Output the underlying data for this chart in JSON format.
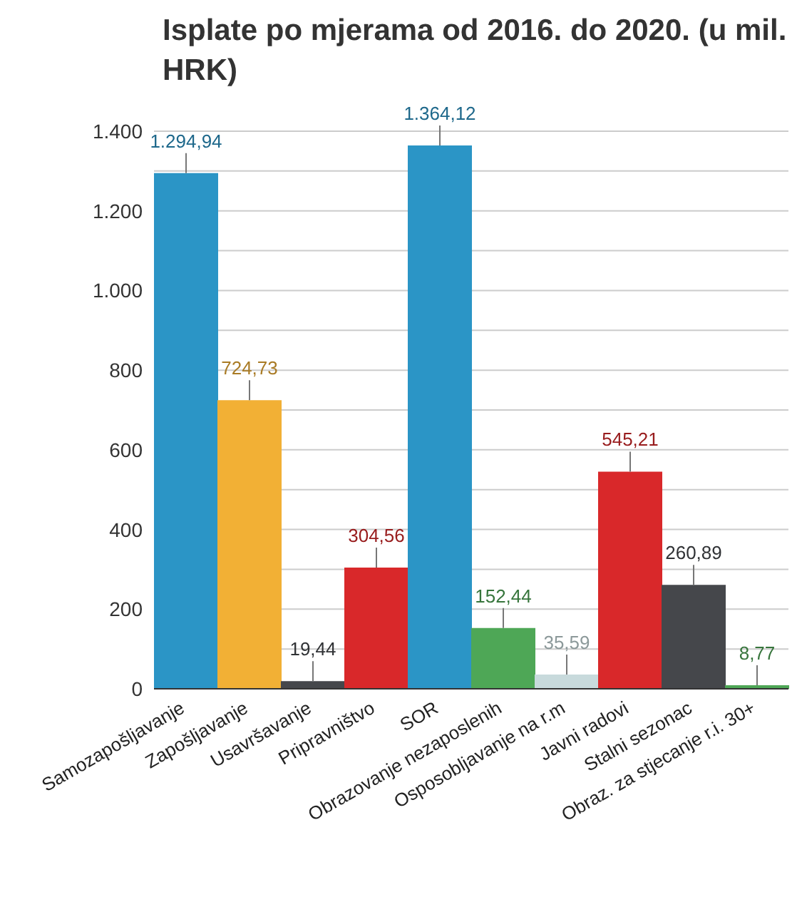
{
  "chart_data": {
    "type": "bar",
    "title": "Isplate po mjerama od 2016. do 2020. (u mil. HRK)",
    "categories": [
      "Samozapošljavanje",
      "Zapošljavanje",
      "Usavršavanje",
      "Pripravništvo",
      "SOR",
      "Obrazovanje nezaposlenih",
      "Osposobljavanje na r.m",
      "Javni radovi",
      "Stalni sezonac",
      "Obraz. za stjecanje r.i. 30+"
    ],
    "values": [
      1294.94,
      724.73,
      19.44,
      304.56,
      1364.12,
      152.44,
      35.59,
      545.21,
      260.89,
      8.77
    ],
    "value_labels": [
      "1.294,94",
      "724,73",
      "19,44",
      "304,56",
      "1.364,12",
      "152,44",
      "35,59",
      "545,21",
      "260,89",
      "8,77"
    ],
    "colors": [
      "#2b95c6",
      "#f2b035",
      "#45474b",
      "#d9282a",
      "#2b95c6",
      "#4ea756",
      "#c8dadc",
      "#d9282a",
      "#45474b",
      "#4ea756"
    ],
    "ylim": [
      0,
      1400
    ],
    "yticks": [
      {
        "value": 0,
        "label": "0"
      },
      {
        "value": 100,
        "label": null
      },
      {
        "value": 200,
        "label": "200"
      },
      {
        "value": 300,
        "label": null
      },
      {
        "value": 400,
        "label": "400"
      },
      {
        "value": 500,
        "label": null
      },
      {
        "value": 600,
        "label": "600"
      },
      {
        "value": 700,
        "label": null
      },
      {
        "value": 800,
        "label": "800"
      },
      {
        "value": 900,
        "label": null
      },
      {
        "value": 1000,
        "label": "1.000"
      },
      {
        "value": 1100,
        "label": null
      },
      {
        "value": 1200,
        "label": "1.200"
      },
      {
        "value": 1300,
        "label": null
      },
      {
        "value": 1400,
        "label": "1.400"
      }
    ],
    "grid": "y"
  }
}
